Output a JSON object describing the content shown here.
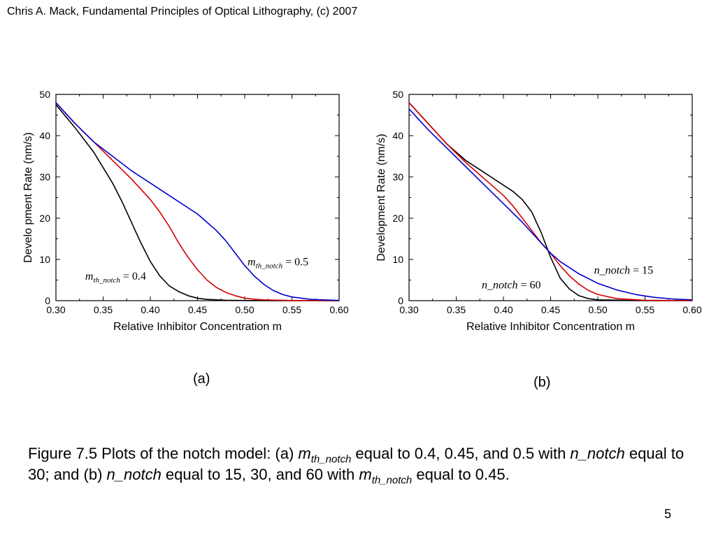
{
  "header": {
    "credit": "Chris A. Mack, Fundamental Principles of Optical Lithography, (c) 2007"
  },
  "chart_data": [
    {
      "id": "a",
      "type": "line",
      "xlabel": "Relative Inhibitor Concentration m",
      "ylabel": "Develo pment Rate (nm/s)",
      "xlim": [
        0.3,
        0.6
      ],
      "ylim": [
        0,
        50
      ],
      "xticks": [
        "0.30",
        "0.35",
        "0.40",
        "0.45",
        "0.50",
        "0.55",
        "0.60"
      ],
      "yticks": [
        "0",
        "10",
        "20",
        "30",
        "40",
        "50"
      ],
      "grid": false,
      "series": [
        {
          "color": "#000000",
          "x": [
            0.3,
            0.32,
            0.34,
            0.36,
            0.37,
            0.38,
            0.39,
            0.4,
            0.41,
            0.42,
            0.43,
            0.44,
            0.45,
            0.46,
            0.48,
            0.5,
            0.55,
            0.6
          ],
          "y": [
            47.5,
            42,
            36,
            28.5,
            24,
            19,
            14,
            9.5,
            6,
            3.6,
            2.2,
            1.2,
            0.6,
            0.3,
            0.1,
            0.03,
            0,
            0
          ]
        },
        {
          "color": "#d40000",
          "x": [
            0.3,
            0.32,
            0.34,
            0.36,
            0.38,
            0.4,
            0.41,
            0.42,
            0.43,
            0.44,
            0.45,
            0.46,
            0.47,
            0.48,
            0.49,
            0.5,
            0.51,
            0.52,
            0.55,
            0.6
          ],
          "y": [
            48,
            43,
            38.5,
            34,
            29.5,
            24.5,
            21.5,
            18,
            14,
            10.5,
            7.5,
            5,
            3.2,
            2,
            1.2,
            0.6,
            0.35,
            0.2,
            0.03,
            0
          ]
        },
        {
          "color": "#0000cc",
          "x": [
            0.3,
            0.32,
            0.34,
            0.36,
            0.38,
            0.4,
            0.42,
            0.44,
            0.45,
            0.46,
            0.47,
            0.48,
            0.49,
            0.5,
            0.51,
            0.52,
            0.53,
            0.54,
            0.55,
            0.57,
            0.6
          ],
          "y": [
            48,
            43,
            38.5,
            35,
            31.5,
            28.5,
            25.5,
            22.5,
            21,
            19,
            17,
            14.5,
            11.5,
            8.5,
            6,
            4,
            2.5,
            1.5,
            0.9,
            0.3,
            0.05
          ]
        }
      ],
      "annotations": [
        {
          "var": "m",
          "sub": "th_notch",
          "rest": " = 0.4",
          "x": 0.331,
          "y": 5.1
        },
        {
          "var": "m",
          "sub": "th_notch",
          "rest": " = 0.5",
          "x": 0.503,
          "y": 8.6
        }
      ]
    },
    {
      "id": "b",
      "type": "line",
      "xlabel": "Relative Inhibitor Concentration m",
      "ylabel": "Development Rate (nm/s)",
      "xlim": [
        0.3,
        0.6
      ],
      "ylim": [
        0,
        50
      ],
      "xticks": [
        "0.30",
        "0.35",
        "0.40",
        "0.45",
        "0.50",
        "0.55",
        "0.60"
      ],
      "yticks": [
        "0",
        "10",
        "20",
        "30",
        "40",
        "50"
      ],
      "grid": false,
      "series": [
        {
          "color": "#000000",
          "x": [
            0.3,
            0.32,
            0.34,
            0.36,
            0.38,
            0.4,
            0.41,
            0.42,
            0.43,
            0.44,
            0.445,
            0.45,
            0.455,
            0.46,
            0.47,
            0.48,
            0.49,
            0.5,
            0.55,
            0.6
          ],
          "y": [
            48,
            43,
            38,
            34,
            31,
            28,
            26.5,
            24.5,
            21.5,
            16.5,
            13.5,
            10.5,
            8,
            5.5,
            2.8,
            1.2,
            0.5,
            0.2,
            0,
            0
          ]
        },
        {
          "color": "#d40000",
          "x": [
            0.3,
            0.32,
            0.34,
            0.36,
            0.38,
            0.4,
            0.41,
            0.42,
            0.43,
            0.44,
            0.45,
            0.46,
            0.47,
            0.48,
            0.49,
            0.5,
            0.52,
            0.55,
            0.6
          ],
          "y": [
            48,
            43,
            38,
            33.5,
            29.5,
            25.5,
            23,
            20,
            17,
            14,
            11.5,
            8.5,
            6,
            4,
            2.5,
            1.5,
            0.5,
            0.1,
            0
          ]
        },
        {
          "color": "#0000cc",
          "x": [
            0.3,
            0.32,
            0.34,
            0.36,
            0.38,
            0.4,
            0.42,
            0.44,
            0.45,
            0.46,
            0.48,
            0.5,
            0.52,
            0.54,
            0.56,
            0.58,
            0.6
          ],
          "y": [
            46.5,
            41.5,
            37,
            32.5,
            28,
            23.5,
            19,
            14,
            11.5,
            9.5,
            6.5,
            4.2,
            2.6,
            1.5,
            0.8,
            0.4,
            0.2
          ]
        }
      ],
      "annotations": [
        {
          "var": "n_notch",
          "sub": "",
          "rest": " = 15",
          "x": 0.496,
          "y": 6.5
        },
        {
          "var": "n_notch",
          "sub": "",
          "rest": " = 60",
          "x": 0.377,
          "y": 3.0
        }
      ]
    }
  ],
  "panels": {
    "a_label": "(a)",
    "b_label": "(b)"
  },
  "caption": {
    "line1_prefix": "Figure 7.5  Plots of the notch model:  (a) ",
    "m_var": "m",
    "m_sub": "th_notch",
    "line1_mid": " equal to 0.4, 0.45, and 0.5 with ",
    "n_var": "n_notch",
    "line2_mid": " equal to 30; and (b) ",
    "line2_mid2": " equal to 15, 30, and 60 with ",
    "line2_end": " equal to 0.45."
  },
  "page_number": "5"
}
